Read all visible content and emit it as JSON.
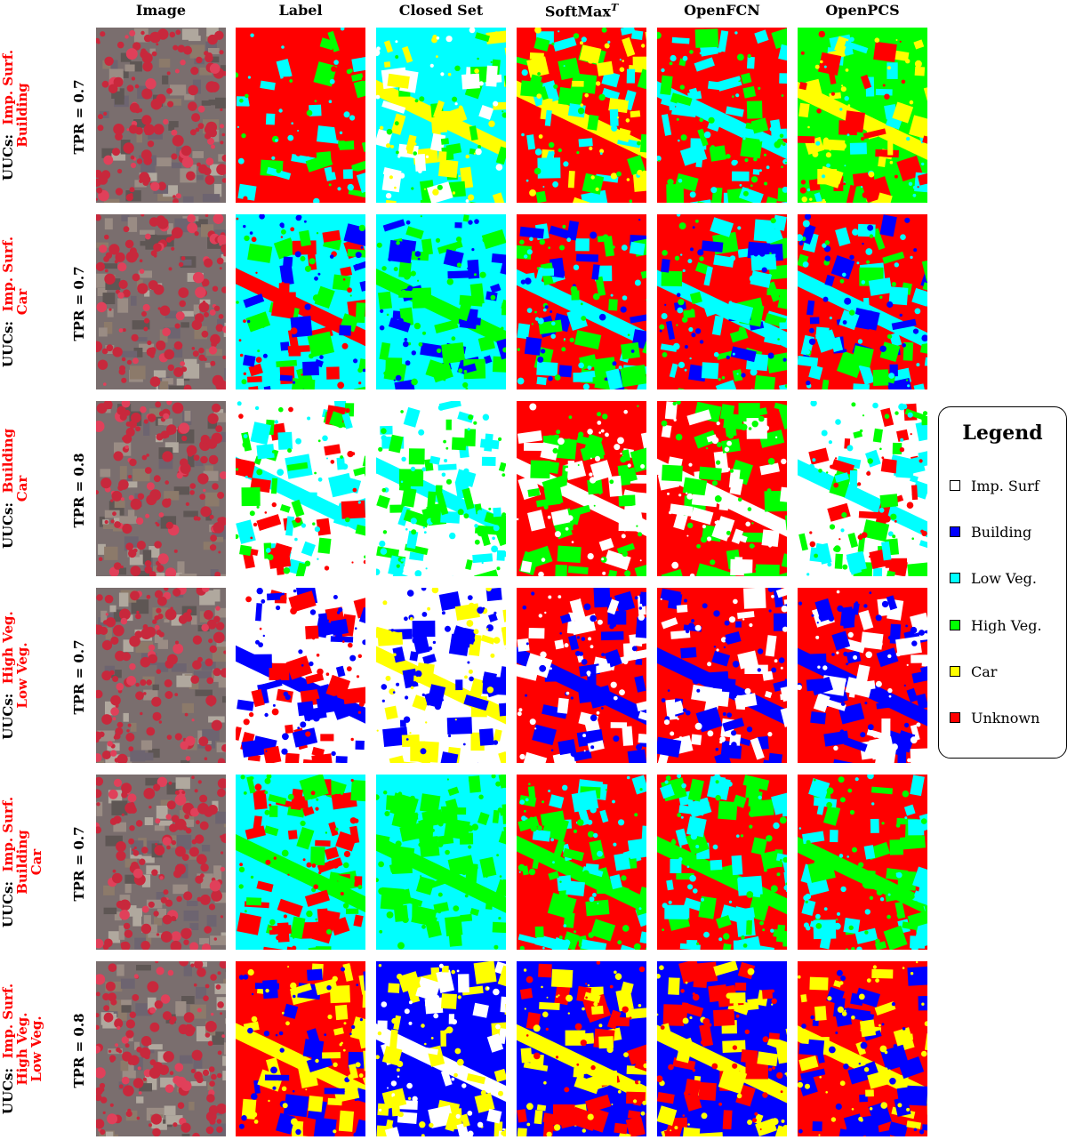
{
  "columns": [
    "Image",
    "Label",
    "Closed Set",
    "SoftMax",
    "OpenFCN",
    "OpenPCS"
  ],
  "softmax_superscript": "T",
  "rows": [
    {
      "uucs_prefix": "UUCs:",
      "classes": [
        "Imp. Surf.",
        "Building"
      ],
      "tpr": "TPR = 0.7"
    },
    {
      "uucs_prefix": "UUCs:",
      "classes": [
        "Imp. Surf.",
        "Car"
      ],
      "tpr": "TPR = 0.7"
    },
    {
      "uucs_prefix": "UUCs:",
      "classes": [
        "Building",
        "Car"
      ],
      "tpr": "TPR = 0.8"
    },
    {
      "uucs_prefix": "UUCs:",
      "classes": [
        "High Veg.",
        "Low Veg."
      ],
      "tpr": "TPR = 0.7"
    },
    {
      "uucs_prefix": "UUCs:",
      "classes": [
        "Imp. Surf.",
        "Building",
        "Car"
      ],
      "tpr": "TPR = 0.7"
    },
    {
      "uucs_prefix": "UUCs:",
      "classes": [
        "Imp. Surf.",
        "High Veg.",
        "Low Veg."
      ],
      "tpr": "TPR = 0.8"
    }
  ],
  "legend": {
    "title": "Legend",
    "items": [
      {
        "label": "Imp. Surf",
        "color": "#ffffff"
      },
      {
        "label": "Building",
        "color": "#0000ff"
      },
      {
        "label": "Low Veg.",
        "color": "#00ffff"
      },
      {
        "label": "High Veg.",
        "color": "#00ff00"
      },
      {
        "label": "Car",
        "color": "#ffff00"
      },
      {
        "label": "Unknown",
        "color": "#ff0000"
      }
    ]
  },
  "colors": {
    "uuc_class_text": "#ff0000",
    "label_text": "#000000",
    "aerial_base": "#7a6e6e",
    "aerial_vegetation": "#c8283c"
  }
}
